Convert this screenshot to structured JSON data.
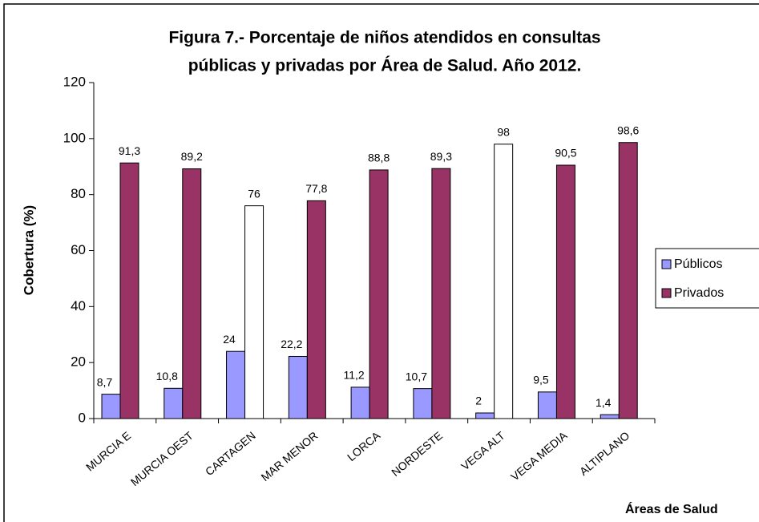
{
  "chart_data": {
    "type": "bar",
    "title": [
      "Figura 7.- Porcentaje de niños atendidos en consultas",
      "públicas y privadas por Área de Salud. Año 2012."
    ],
    "y_label": "Cobertura (%)",
    "x_label": "Áreas de Salud",
    "categories": [
      "MURCIA E",
      "MURCIA OEST",
      "CARTAGEN",
      "MAR MENOR",
      "LORCA",
      "NORDESTE",
      "VEGA ALT",
      "VEGA MEDIA",
      "ALTIPLANO"
    ],
    "series": [
      {
        "name": "Públicos",
        "color": "#9999ff",
        "values": [
          8.7,
          10.8,
          24,
          22.2,
          11.2,
          10.7,
          2,
          9.5,
          1.4
        ],
        "value_labels": [
          "8,7",
          "10,8",
          "24",
          "22,2",
          "11,2",
          "10,7",
          "2",
          "9,5",
          "1,4"
        ]
      },
      {
        "name": "Privados",
        "color": "#993366",
        "point_colors": [
          "#993366",
          "#993366",
          "#ffffff",
          "#993366",
          "#993366",
          "#993366",
          "#ffffff",
          "#993366",
          "#993366"
        ],
        "values": [
          91.3,
          89.2,
          76,
          77.8,
          88.8,
          89.3,
          98,
          90.5,
          98.6
        ],
        "value_labels": [
          "91,3",
          "89,2",
          "76",
          "77,8",
          "88,8",
          "89,3",
          "98",
          "90,5",
          "98,6"
        ]
      }
    ],
    "ylim": [
      0,
      120
    ],
    "yticks": [
      0,
      20,
      40,
      60,
      80,
      100,
      120
    ],
    "legend": "right"
  }
}
